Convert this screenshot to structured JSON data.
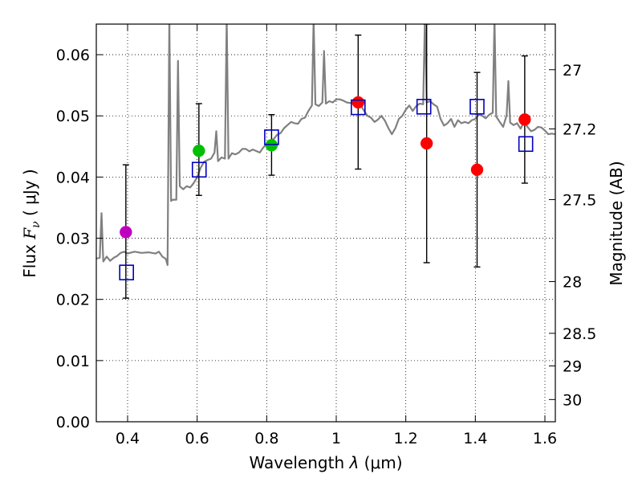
{
  "chart_data": {
    "type": "scatter",
    "xlabel": "Wavelength  λ (μm)",
    "ylabel": "Flux  F_ν  ( μJy )",
    "ylabel_parts": {
      "pre": "Flux ",
      "var": "F",
      "sub": "ν",
      "post": "  ( μJy )"
    },
    "xlabel_parts": {
      "pre": "Wavelength  ",
      "var": "λ",
      "post": " (μm)"
    },
    "y2label": "Magnitude (AB)",
    "xlim": [
      0.31,
      1.63
    ],
    "ylim": [
      0.0,
      0.065
    ],
    "grid": true,
    "x_ticks": [
      {
        "v": 0.4,
        "label": "0.4"
      },
      {
        "v": 0.6,
        "label": "0.6"
      },
      {
        "v": 0.8,
        "label": "0.8"
      },
      {
        "v": 1.0,
        "label": "1"
      },
      {
        "v": 1.2,
        "label": "1.2"
      },
      {
        "v": 1.4,
        "label": "1.4"
      },
      {
        "v": 1.6,
        "label": "1.6"
      }
    ],
    "y_ticks": [
      {
        "v": 0.0,
        "label": "0.00"
      },
      {
        "v": 0.01,
        "label": "0.01"
      },
      {
        "v": 0.02,
        "label": "0.02"
      },
      {
        "v": 0.03,
        "label": "0.03"
      },
      {
        "v": 0.04,
        "label": "0.04"
      },
      {
        "v": 0.05,
        "label": "0.05"
      },
      {
        "v": 0.06,
        "label": "0.06"
      }
    ],
    "y2_ticks": [
      {
        "mag": 27.0,
        "label": "27"
      },
      {
        "mag": 27.2,
        "label": "27.2"
      },
      {
        "mag": 27.5,
        "label": "27.5"
      },
      {
        "mag": 28.0,
        "label": "28"
      },
      {
        "mag": 28.5,
        "label": "28.5"
      },
      {
        "mag": 29.0,
        "label": "29"
      },
      {
        "mag": 30.0,
        "label": "30"
      }
    ],
    "observed": [
      {
        "x": 0.395,
        "y": 0.031,
        "yerr_low": 0.0202,
        "yerr_high": 0.042,
        "color": "#BF00BF"
      },
      {
        "x": 0.605,
        "y": 0.0443,
        "yerr_low": 0.037,
        "yerr_high": 0.052,
        "color": "#00BF00"
      },
      {
        "x": 0.814,
        "y": 0.0452,
        "yerr_low": 0.0403,
        "yerr_high": 0.0502,
        "color": "#00BF00"
      },
      {
        "x": 1.063,
        "y": 0.0522,
        "yerr_low": 0.0413,
        "yerr_high": 0.0632,
        "color": "#FF0000"
      },
      {
        "x": 1.26,
        "y": 0.0455,
        "yerr_low": 0.026,
        "yerr_high": 0.065,
        "color": "#FF0000"
      },
      {
        "x": 1.405,
        "y": 0.0412,
        "yerr_low": 0.0253,
        "yerr_high": 0.0571,
        "color": "#FF0000"
      },
      {
        "x": 1.542,
        "y": 0.0494,
        "yerr_low": 0.039,
        "yerr_high": 0.0598,
        "color": "#FF0000"
      }
    ],
    "model_photometry": {
      "color": "#0000BF",
      "points": [
        {
          "x": 0.397,
          "y": 0.0244
        },
        {
          "x": 0.606,
          "y": 0.0412
        },
        {
          "x": 0.814,
          "y": 0.0465
        },
        {
          "x": 1.063,
          "y": 0.0514
        },
        {
          "x": 1.252,
          "y": 0.0515
        },
        {
          "x": 1.405,
          "y": 0.0515
        },
        {
          "x": 1.545,
          "y": 0.0454
        }
      ]
    },
    "model_spectrum": {
      "color": "#808080",
      "points": [
        [
          0.31,
          0.0267
        ],
        [
          0.32,
          0.0268
        ],
        [
          0.325,
          0.0341
        ],
        [
          0.33,
          0.0262
        ],
        [
          0.34,
          0.027
        ],
        [
          0.35,
          0.0263
        ],
        [
          0.36,
          0.0268
        ],
        [
          0.37,
          0.0271
        ],
        [
          0.38,
          0.0276
        ],
        [
          0.39,
          0.0278
        ],
        [
          0.4,
          0.0275
        ],
        [
          0.42,
          0.0278
        ],
        [
          0.44,
          0.0276
        ],
        [
          0.46,
          0.0277
        ],
        [
          0.48,
          0.0275
        ],
        [
          0.49,
          0.0278
        ],
        [
          0.5,
          0.027
        ],
        [
          0.51,
          0.0266
        ],
        [
          0.515,
          0.0256
        ],
        [
          0.52,
          0.066
        ],
        [
          0.525,
          0.0361
        ],
        [
          0.53,
          0.0363
        ],
        [
          0.54,
          0.0363
        ],
        [
          0.545,
          0.059
        ],
        [
          0.55,
          0.0385
        ],
        [
          0.56,
          0.038
        ],
        [
          0.57,
          0.0385
        ],
        [
          0.58,
          0.0383
        ],
        [
          0.59,
          0.039
        ],
        [
          0.6,
          0.04
        ],
        [
          0.61,
          0.0415
        ],
        [
          0.62,
          0.0425
        ],
        [
          0.63,
          0.0428
        ],
        [
          0.64,
          0.043
        ],
        [
          0.65,
          0.044
        ],
        [
          0.655,
          0.0475
        ],
        [
          0.66,
          0.0426
        ],
        [
          0.67,
          0.0432
        ],
        [
          0.68,
          0.043
        ],
        [
          0.685,
          0.066
        ],
        [
          0.69,
          0.043
        ],
        [
          0.7,
          0.0439
        ],
        [
          0.71,
          0.0437
        ],
        [
          0.72,
          0.044
        ],
        [
          0.73,
          0.0446
        ],
        [
          0.74,
          0.0446
        ],
        [
          0.75,
          0.0442
        ],
        [
          0.76,
          0.0445
        ],
        [
          0.78,
          0.044
        ],
        [
          0.79,
          0.0448
        ],
        [
          0.8,
          0.0454
        ],
        [
          0.81,
          0.046
        ],
        [
          0.82,
          0.0462
        ],
        [
          0.83,
          0.0469
        ],
        [
          0.84,
          0.0472
        ],
        [
          0.85,
          0.048
        ],
        [
          0.86,
          0.0485
        ],
        [
          0.87,
          0.049
        ],
        [
          0.88,
          0.0488
        ],
        [
          0.89,
          0.0487
        ],
        [
          0.9,
          0.0495
        ],
        [
          0.91,
          0.0497
        ],
        [
          0.92,
          0.0508
        ],
        [
          0.93,
          0.0517
        ],
        [
          0.935,
          0.066
        ],
        [
          0.94,
          0.0519
        ],
        [
          0.95,
          0.0516
        ],
        [
          0.96,
          0.0522
        ],
        [
          0.965,
          0.0606
        ],
        [
          0.97,
          0.052
        ],
        [
          0.98,
          0.0524
        ],
        [
          0.99,
          0.0522
        ],
        [
          1.0,
          0.0527
        ],
        [
          1.01,
          0.0527
        ],
        [
          1.02,
          0.0525
        ],
        [
          1.03,
          0.0522
        ],
        [
          1.04,
          0.0521
        ],
        [
          1.05,
          0.052
        ],
        [
          1.06,
          0.0521
        ],
        [
          1.07,
          0.0518
        ],
        [
          1.08,
          0.0508
        ],
        [
          1.09,
          0.05
        ],
        [
          1.1,
          0.0497
        ],
        [
          1.11,
          0.049
        ],
        [
          1.12,
          0.0494
        ],
        [
          1.13,
          0.05
        ],
        [
          1.14,
          0.0492
        ],
        [
          1.15,
          0.048
        ],
        [
          1.16,
          0.047
        ],
        [
          1.17,
          0.048
        ],
        [
          1.18,
          0.0495
        ],
        [
          1.19,
          0.05
        ],
        [
          1.2,
          0.051
        ],
        [
          1.21,
          0.0517
        ],
        [
          1.22,
          0.0508
        ],
        [
          1.23,
          0.0516
        ],
        [
          1.24,
          0.052
        ],
        [
          1.25,
          0.0519
        ],
        [
          1.255,
          0.066
        ],
        [
          1.26,
          0.0522
        ],
        [
          1.27,
          0.0524
        ],
        [
          1.28,
          0.0519
        ],
        [
          1.29,
          0.0515
        ],
        [
          1.3,
          0.0495
        ],
        [
          1.31,
          0.0484
        ],
        [
          1.32,
          0.0488
        ],
        [
          1.33,
          0.0495
        ],
        [
          1.34,
          0.0482
        ],
        [
          1.35,
          0.0493
        ],
        [
          1.36,
          0.0488
        ],
        [
          1.37,
          0.049
        ],
        [
          1.38,
          0.0488
        ],
        [
          1.39,
          0.0493
        ],
        [
          1.4,
          0.0495
        ],
        [
          1.41,
          0.0502
        ],
        [
          1.42,
          0.05
        ],
        [
          1.43,
          0.0496
        ],
        [
          1.44,
          0.0502
        ],
        [
          1.45,
          0.0505
        ],
        [
          1.455,
          0.066
        ],
        [
          1.46,
          0.0499
        ],
        [
          1.47,
          0.049
        ],
        [
          1.48,
          0.0482
        ],
        [
          1.49,
          0.0501
        ],
        [
          1.495,
          0.0557
        ],
        [
          1.5,
          0.0489
        ],
        [
          1.51,
          0.0485
        ],
        [
          1.52,
          0.0488
        ],
        [
          1.53,
          0.0479
        ],
        [
          1.54,
          0.049
        ],
        [
          1.55,
          0.0482
        ],
        [
          1.56,
          0.0475
        ],
        [
          1.57,
          0.0477
        ],
        [
          1.58,
          0.0482
        ],
        [
          1.59,
          0.0481
        ],
        [
          1.6,
          0.0476
        ],
        [
          1.61,
          0.047
        ],
        [
          1.62,
          0.0471
        ],
        [
          1.63,
          0.047
        ]
      ]
    }
  }
}
